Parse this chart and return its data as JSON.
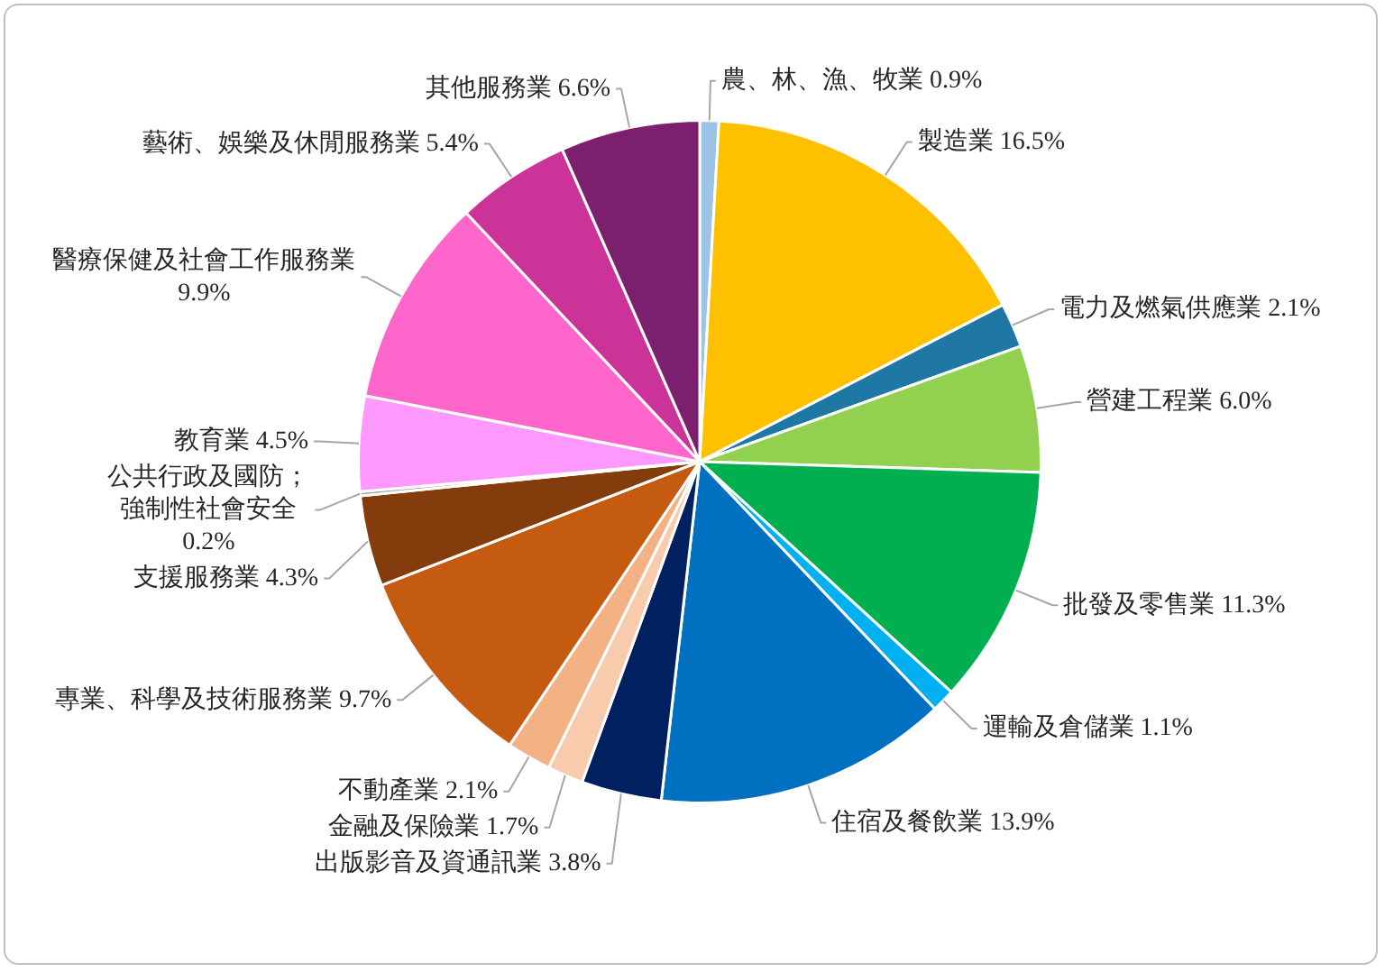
{
  "chart_data": {
    "type": "pie",
    "categories": [
      "農、林、漁、牧業",
      "製造業",
      "電力及燃氣供應業",
      "營建工程業",
      "批發及零售業",
      "運輸及倉儲業",
      "住宿及餐飲業",
      "出版影音及資通訊業",
      "金融及保險業",
      "不動產業",
      "專業、科學及技術服務業",
      "支援服務業",
      "公共行政及國防；強制性社會安全",
      "教育業",
      "醫療保健及社會工作服務業",
      "藝術、娛樂及休閒服務業",
      "其他服務業"
    ],
    "values": [
      0.9,
      16.5,
      2.1,
      6.0,
      11.3,
      1.1,
      13.9,
      3.8,
      1.7,
      2.1,
      9.7,
      4.3,
      0.2,
      4.5,
      9.9,
      5.4,
      6.6
    ],
    "value_labels": [
      "0.9%",
      "16.5%",
      "2.1%",
      "6.0%",
      "11.3%",
      "1.1%",
      "13.9%",
      "3.8%",
      "1.7%",
      "2.1%",
      "9.7%",
      "4.3%",
      "0.2%",
      "4.5%",
      "9.9%",
      "5.4%",
      "6.6%"
    ],
    "colors": [
      "#9dc3e6",
      "#ffc000",
      "#1f78a4",
      "#92d050",
      "#00b050",
      "#00b0f0",
      "#0070c0",
      "#002060",
      "#f8cbad",
      "#f4b183",
      "#c55a11",
      "#843c0c",
      "#a5a5a5",
      "#ff99ff",
      "#ff66cc",
      "#cc3399",
      "#7b1f6e"
    ]
  }
}
